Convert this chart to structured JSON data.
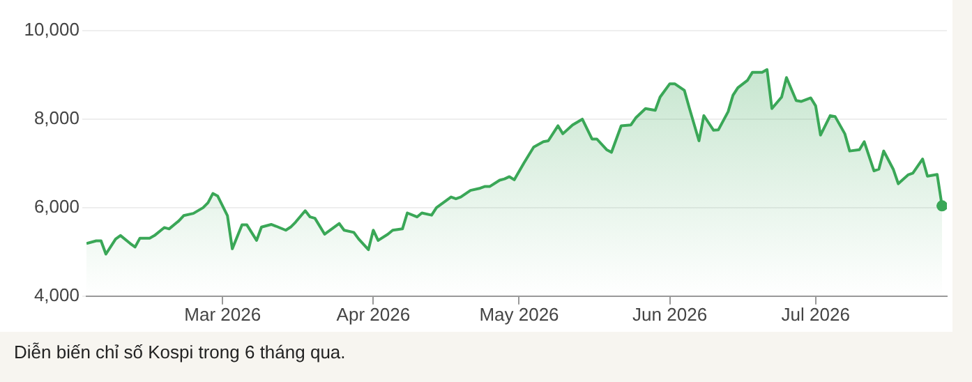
{
  "chart_data": {
    "type": "area",
    "color": "#3aa757",
    "x": [
      "2026-02-01",
      "2026-02-03",
      "2026-02-04",
      "2026-02-05",
      "2026-02-07",
      "2026-02-08",
      "2026-02-10",
      "2026-02-11",
      "2026-02-12",
      "2026-02-14",
      "2026-02-15",
      "2026-02-17",
      "2026-02-18",
      "2026-02-20",
      "2026-02-21",
      "2026-02-23",
      "2026-02-25",
      "2026-02-26",
      "2026-02-27",
      "2026-02-28",
      "2026-03-02",
      "2026-03-03",
      "2026-03-05",
      "2026-03-06",
      "2026-03-08",
      "2026-03-09",
      "2026-03-11",
      "2026-03-12",
      "2026-03-14",
      "2026-03-15",
      "2026-03-16",
      "2026-03-18",
      "2026-03-19",
      "2026-03-20",
      "2026-03-22",
      "2026-03-25",
      "2026-03-26",
      "2026-03-28",
      "2026-03-29",
      "2026-03-31",
      "2026-04-01",
      "2026-04-02",
      "2026-04-04",
      "2026-04-05",
      "2026-04-07",
      "2026-04-08",
      "2026-04-10",
      "2026-04-11",
      "2026-04-13",
      "2026-04-14",
      "2026-04-17",
      "2026-04-18",
      "2026-04-19",
      "2026-04-21",
      "2026-04-23",
      "2026-04-24",
      "2026-04-25",
      "2026-04-27",
      "2026-04-28",
      "2026-04-29",
      "2026-04-30",
      "2026-05-02",
      "2026-05-04",
      "2026-05-06",
      "2026-05-07",
      "2026-05-09",
      "2026-05-10",
      "2026-05-12",
      "2026-05-14",
      "2026-05-16",
      "2026-05-17",
      "2026-05-19",
      "2026-05-20",
      "2026-05-22",
      "2026-05-24",
      "2026-05-25",
      "2026-05-27",
      "2026-05-29",
      "2026-05-30",
      "2026-06-01",
      "2026-06-02",
      "2026-06-04",
      "2026-06-05",
      "2026-06-07",
      "2026-06-08",
      "2026-06-10",
      "2026-06-11",
      "2026-06-13",
      "2026-06-14",
      "2026-06-15",
      "2026-06-17",
      "2026-06-18",
      "2026-06-20",
      "2026-06-21",
      "2026-06-22",
      "2026-06-24",
      "2026-06-25",
      "2026-06-27",
      "2026-06-28",
      "2026-06-30",
      "2026-07-01",
      "2026-07-02",
      "2026-07-04",
      "2026-07-05",
      "2026-07-07",
      "2026-07-08",
      "2026-07-10",
      "2026-07-11",
      "2026-07-13",
      "2026-07-14",
      "2026-07-15",
      "2026-07-17",
      "2026-07-18",
      "2026-07-20",
      "2026-07-21",
      "2026-07-23",
      "2026-07-24",
      "2026-07-26",
      "2026-07-27"
    ],
    "values": [
      5190,
      5250,
      5250,
      4950,
      5290,
      5370,
      5190,
      5110,
      5310,
      5310,
      5370,
      5550,
      5520,
      5700,
      5820,
      5870,
      6000,
      6110,
      6320,
      6260,
      5820,
      5070,
      5610,
      5610,
      5260,
      5560,
      5620,
      5580,
      5490,
      5560,
      5670,
      5930,
      5790,
      5760,
      5400,
      5640,
      5490,
      5440,
      5290,
      5050,
      5490,
      5260,
      5400,
      5490,
      5520,
      5880,
      5790,
      5880,
      5830,
      6000,
      6240,
      6200,
      6240,
      6390,
      6440,
      6480,
      6480,
      6620,
      6650,
      6700,
      6630,
      7010,
      7370,
      7490,
      7510,
      7850,
      7670,
      7870,
      8000,
      7550,
      7550,
      7310,
      7250,
      7850,
      7870,
      8030,
      8240,
      8200,
      8500,
      8800,
      8800,
      8650,
      8260,
      7510,
      8080,
      7750,
      7760,
      8170,
      8540,
      8710,
      8880,
      9060,
      9060,
      9120,
      8240,
      8500,
      8940,
      8420,
      8400,
      8480,
      8300,
      7640,
      8080,
      8060,
      7670,
      7280,
      7310,
      7490,
      6830,
      6870,
      7280,
      6860,
      6540,
      6740,
      6780,
      7100,
      6710,
      6750,
      6040
    ],
    "xlim": [
      "2026-02-01",
      "2026-07-28"
    ],
    "xticks": [
      {
        "value": "2026-03-01",
        "label": "Mar 2026"
      },
      {
        "value": "2026-04-01",
        "label": "Apr 2026"
      },
      {
        "value": "2026-05-01",
        "label": "May 2026"
      },
      {
        "value": "2026-06-01",
        "label": "Jun 2026"
      },
      {
        "value": "2026-07-01",
        "label": "Jul 2026"
      }
    ],
    "ylim": [
      4000,
      10000
    ],
    "yticks": [
      {
        "value": 4000,
        "label": "4,000"
      },
      {
        "value": 6000,
        "label": "6,000"
      },
      {
        "value": 8000,
        "label": "8,000"
      },
      {
        "value": 10000,
        "label": "10,000"
      }
    ],
    "grid": "y",
    "legend": false,
    "annotations": [
      "Diễn biến chỉ số Kospi trong 6 tháng qua."
    ]
  }
}
